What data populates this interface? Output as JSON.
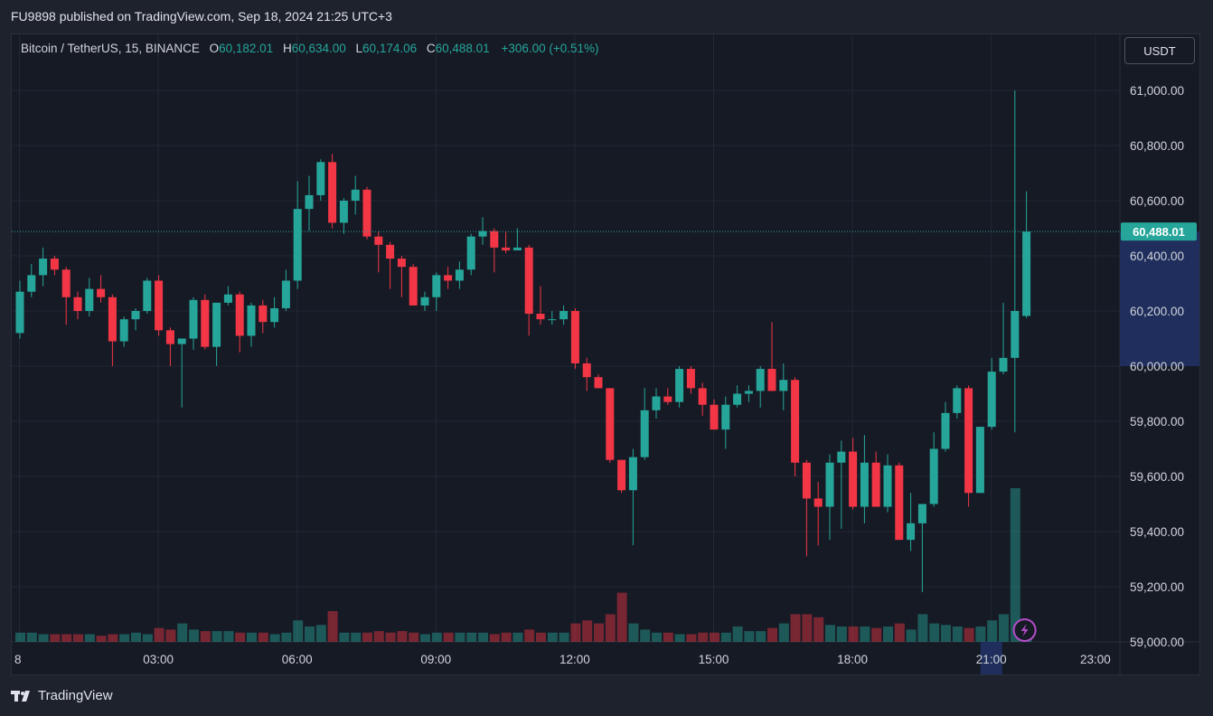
{
  "header": {
    "published_text": "FU9898 published on TradingView.com, Sep 18, 2024 21:25 UTC+3"
  },
  "legend": {
    "symbol": "Bitcoin / TetherUS, 15, BINANCE",
    "open_label": "O",
    "open": "60,182.01",
    "high_label": "H",
    "high": "60,634.00",
    "low_label": "L",
    "low": "60,174.06",
    "close_label": "C",
    "close": "60,488.01",
    "change": "+306.00 (+0.51%)"
  },
  "currency_button": "USDT",
  "footer": {
    "brand": "TradingView",
    "logo_icon": "tradingview-logo-icon"
  },
  "colors": {
    "up": "#26a69a",
    "down": "#f23645",
    "background": "#161a25",
    "grid": "#232733",
    "highlight": "#1f2e5c"
  },
  "chart_data": {
    "type": "candlestick",
    "symbol": "Bitcoin / TetherUS",
    "interval": "15",
    "exchange": "BINANCE",
    "currency": "USDT",
    "ylim": [
      59000,
      61100
    ],
    "y_ticks": [
      "61,000.00",
      "60,800.00",
      "60,600.00",
      "60,400.00",
      "60,200.00",
      "60,000.00",
      "59,800.00",
      "59,600.00",
      "59,400.00",
      "59,200.00",
      "59,000.00"
    ],
    "x_ticks": [
      "8",
      "03:00",
      "06:00",
      "09:00",
      "12:00",
      "15:00",
      "18:00",
      "21:00",
      "23:00"
    ],
    "last_price": "60,488.01",
    "last_price_value": 60488.01,
    "highlight_range": [
      60000,
      60488.01
    ],
    "active_x_label": "21:00",
    "candles": [
      {
        "o": 60120,
        "h": 60310,
        "l": 60100,
        "c": 60270
      },
      {
        "o": 60270,
        "h": 60370,
        "l": 60250,
        "c": 60330
      },
      {
        "o": 60330,
        "h": 60430,
        "l": 60290,
        "c": 60390
      },
      {
        "o": 60390,
        "h": 60400,
        "l": 60330,
        "c": 60350
      },
      {
        "o": 60350,
        "h": 60360,
        "l": 60150,
        "c": 60250
      },
      {
        "o": 60250,
        "h": 60270,
        "l": 60170,
        "c": 60200
      },
      {
        "o": 60200,
        "h": 60320,
        "l": 60180,
        "c": 60280
      },
      {
        "o": 60280,
        "h": 60330,
        "l": 60230,
        "c": 60250
      },
      {
        "o": 60250,
        "h": 60260,
        "l": 60000,
        "c": 60090
      },
      {
        "o": 60090,
        "h": 60180,
        "l": 60070,
        "c": 60170
      },
      {
        "o": 60170,
        "h": 60210,
        "l": 60130,
        "c": 60200
      },
      {
        "o": 60200,
        "h": 60320,
        "l": 60190,
        "c": 60310
      },
      {
        "o": 60310,
        "h": 60330,
        "l": 60110,
        "c": 60130
      },
      {
        "o": 60130,
        "h": 60140,
        "l": 60000,
        "c": 60080
      },
      {
        "o": 60080,
        "h": 60100,
        "l": 59850,
        "c": 60100
      },
      {
        "o": 60100,
        "h": 60250,
        "l": 60060,
        "c": 60240
      },
      {
        "o": 60240,
        "h": 60260,
        "l": 60060,
        "c": 60070
      },
      {
        "o": 60070,
        "h": 60230,
        "l": 60000,
        "c": 60230
      },
      {
        "o": 60230,
        "h": 60290,
        "l": 60220,
        "c": 60260
      },
      {
        "o": 60260,
        "h": 60270,
        "l": 60050,
        "c": 60110
      },
      {
        "o": 60110,
        "h": 60230,
        "l": 60070,
        "c": 60220
      },
      {
        "o": 60220,
        "h": 60240,
        "l": 60120,
        "c": 60160
      },
      {
        "o": 60160,
        "h": 60250,
        "l": 60140,
        "c": 60210
      },
      {
        "o": 60210,
        "h": 60350,
        "l": 60200,
        "c": 60310
      },
      {
        "o": 60310,
        "h": 60670,
        "l": 60280,
        "c": 60570
      },
      {
        "o": 60570,
        "h": 60690,
        "l": 60490,
        "c": 60620
      },
      {
        "o": 60620,
        "h": 60750,
        "l": 60600,
        "c": 60740
      },
      {
        "o": 60740,
        "h": 60770,
        "l": 60500,
        "c": 60520
      },
      {
        "o": 60520,
        "h": 60610,
        "l": 60480,
        "c": 60600
      },
      {
        "o": 60600,
        "h": 60690,
        "l": 60550,
        "c": 60640
      },
      {
        "o": 60640,
        "h": 60650,
        "l": 60460,
        "c": 60470
      },
      {
        "o": 60470,
        "h": 60490,
        "l": 60340,
        "c": 60440
      },
      {
        "o": 60440,
        "h": 60450,
        "l": 60280,
        "c": 60390
      },
      {
        "o": 60390,
        "h": 60400,
        "l": 60250,
        "c": 60360
      },
      {
        "o": 60360,
        "h": 60370,
        "l": 60220,
        "c": 60220
      },
      {
        "o": 60220,
        "h": 60270,
        "l": 60200,
        "c": 60250
      },
      {
        "o": 60250,
        "h": 60340,
        "l": 60200,
        "c": 60330
      },
      {
        "o": 60330,
        "h": 60360,
        "l": 60280,
        "c": 60310
      },
      {
        "o": 60310,
        "h": 60380,
        "l": 60280,
        "c": 60350
      },
      {
        "o": 60350,
        "h": 60480,
        "l": 60330,
        "c": 60470
      },
      {
        "o": 60470,
        "h": 60540,
        "l": 60440,
        "c": 60490
      },
      {
        "o": 60490,
        "h": 60500,
        "l": 60340,
        "c": 60430
      },
      {
        "o": 60430,
        "h": 60490,
        "l": 60410,
        "c": 60420
      },
      {
        "o": 60420,
        "h": 60500,
        "l": 60420,
        "c": 60430
      },
      {
        "o": 60430,
        "h": 60440,
        "l": 60110,
        "c": 60190
      },
      {
        "o": 60190,
        "h": 60290,
        "l": 60150,
        "c": 60170
      },
      {
        "o": 60170,
        "h": 60200,
        "l": 60150,
        "c": 60170
      },
      {
        "o": 60170,
        "h": 60220,
        "l": 60150,
        "c": 60200
      },
      {
        "o": 60200,
        "h": 60210,
        "l": 59990,
        "c": 60010
      },
      {
        "o": 60010,
        "h": 60030,
        "l": 59910,
        "c": 59960
      },
      {
        "o": 59960,
        "h": 59970,
        "l": 59920,
        "c": 59920
      },
      {
        "o": 59920,
        "h": 59920,
        "l": 59650,
        "c": 59660
      },
      {
        "o": 59660,
        "h": 59660,
        "l": 59540,
        "c": 59550
      },
      {
        "o": 59550,
        "h": 59700,
        "l": 59350,
        "c": 59670
      },
      {
        "o": 59670,
        "h": 59920,
        "l": 59660,
        "c": 59840
      },
      {
        "o": 59840,
        "h": 59920,
        "l": 59810,
        "c": 59890
      },
      {
        "o": 59890,
        "h": 59920,
        "l": 59860,
        "c": 59870
      },
      {
        "o": 59870,
        "h": 60000,
        "l": 59850,
        "c": 59990
      },
      {
        "o": 59990,
        "h": 60000,
        "l": 59900,
        "c": 59920
      },
      {
        "o": 59920,
        "h": 59940,
        "l": 59820,
        "c": 59860
      },
      {
        "o": 59860,
        "h": 59880,
        "l": 59770,
        "c": 59770
      },
      {
        "o": 59770,
        "h": 59890,
        "l": 59700,
        "c": 59860
      },
      {
        "o": 59860,
        "h": 59930,
        "l": 59850,
        "c": 59900
      },
      {
        "o": 59900,
        "h": 59930,
        "l": 59870,
        "c": 59910
      },
      {
        "o": 59910,
        "h": 60000,
        "l": 59850,
        "c": 59990
      },
      {
        "o": 59990,
        "h": 60160,
        "l": 59910,
        "c": 59910
      },
      {
        "o": 59910,
        "h": 60010,
        "l": 59840,
        "c": 59950
      },
      {
        "o": 59950,
        "h": 59960,
        "l": 59600,
        "c": 59650
      },
      {
        "o": 59650,
        "h": 59660,
        "l": 59310,
        "c": 59520
      },
      {
        "o": 59520,
        "h": 59580,
        "l": 59350,
        "c": 59490
      },
      {
        "o": 59490,
        "h": 59680,
        "l": 59370,
        "c": 59650
      },
      {
        "o": 59650,
        "h": 59730,
        "l": 59410,
        "c": 59690
      },
      {
        "o": 59690,
        "h": 59740,
        "l": 59480,
        "c": 59490
      },
      {
        "o": 59490,
        "h": 59750,
        "l": 59430,
        "c": 59650
      },
      {
        "o": 59650,
        "h": 59690,
        "l": 59490,
        "c": 59490
      },
      {
        "o": 59490,
        "h": 59680,
        "l": 59470,
        "c": 59640
      },
      {
        "o": 59640,
        "h": 59650,
        "l": 59370,
        "c": 59370
      },
      {
        "o": 59370,
        "h": 59540,
        "l": 59330,
        "c": 59430
      },
      {
        "o": 59430,
        "h": 59480,
        "l": 59180,
        "c": 59500
      },
      {
        "o": 59500,
        "h": 59760,
        "l": 59490,
        "c": 59700
      },
      {
        "o": 59700,
        "h": 59870,
        "l": 59690,
        "c": 59830
      },
      {
        "o": 59830,
        "h": 59930,
        "l": 59810,
        "c": 59920
      },
      {
        "o": 59920,
        "h": 59930,
        "l": 59490,
        "c": 59540
      },
      {
        "o": 59540,
        "h": 59770,
        "l": 59540,
        "c": 59780
      },
      {
        "o": 59780,
        "h": 60030,
        "l": 59770,
        "c": 59980
      },
      {
        "o": 59980,
        "h": 60230,
        "l": 59970,
        "c": 60030
      },
      {
        "o": 60030,
        "h": 61000,
        "l": 59760,
        "c": 60200
      },
      {
        "o": 60182.01,
        "h": 60634.0,
        "l": 60174.06,
        "c": 60488.01
      }
    ],
    "volumes": [
      6,
      6,
      5,
      5,
      5,
      5,
      5,
      4,
      5,
      5,
      6,
      5,
      9,
      8,
      12,
      8,
      7,
      7,
      7,
      6,
      6,
      6,
      5,
      6,
      14,
      10,
      11,
      20,
      6,
      6,
      6,
      7,
      6,
      7,
      6,
      5,
      6,
      6,
      6,
      6,
      6,
      5,
      6,
      6,
      8,
      6,
      6,
      6,
      12,
      14,
      12,
      18,
      32,
      12,
      8,
      6,
      6,
      5,
      5,
      6,
      6,
      6,
      10,
      7,
      7,
      9,
      12,
      18,
      18,
      16,
      11,
      10,
      10,
      10,
      9,
      10,
      12,
      8,
      18,
      12,
      11,
      10,
      9,
      10,
      14,
      18,
      100,
      8
    ]
  }
}
